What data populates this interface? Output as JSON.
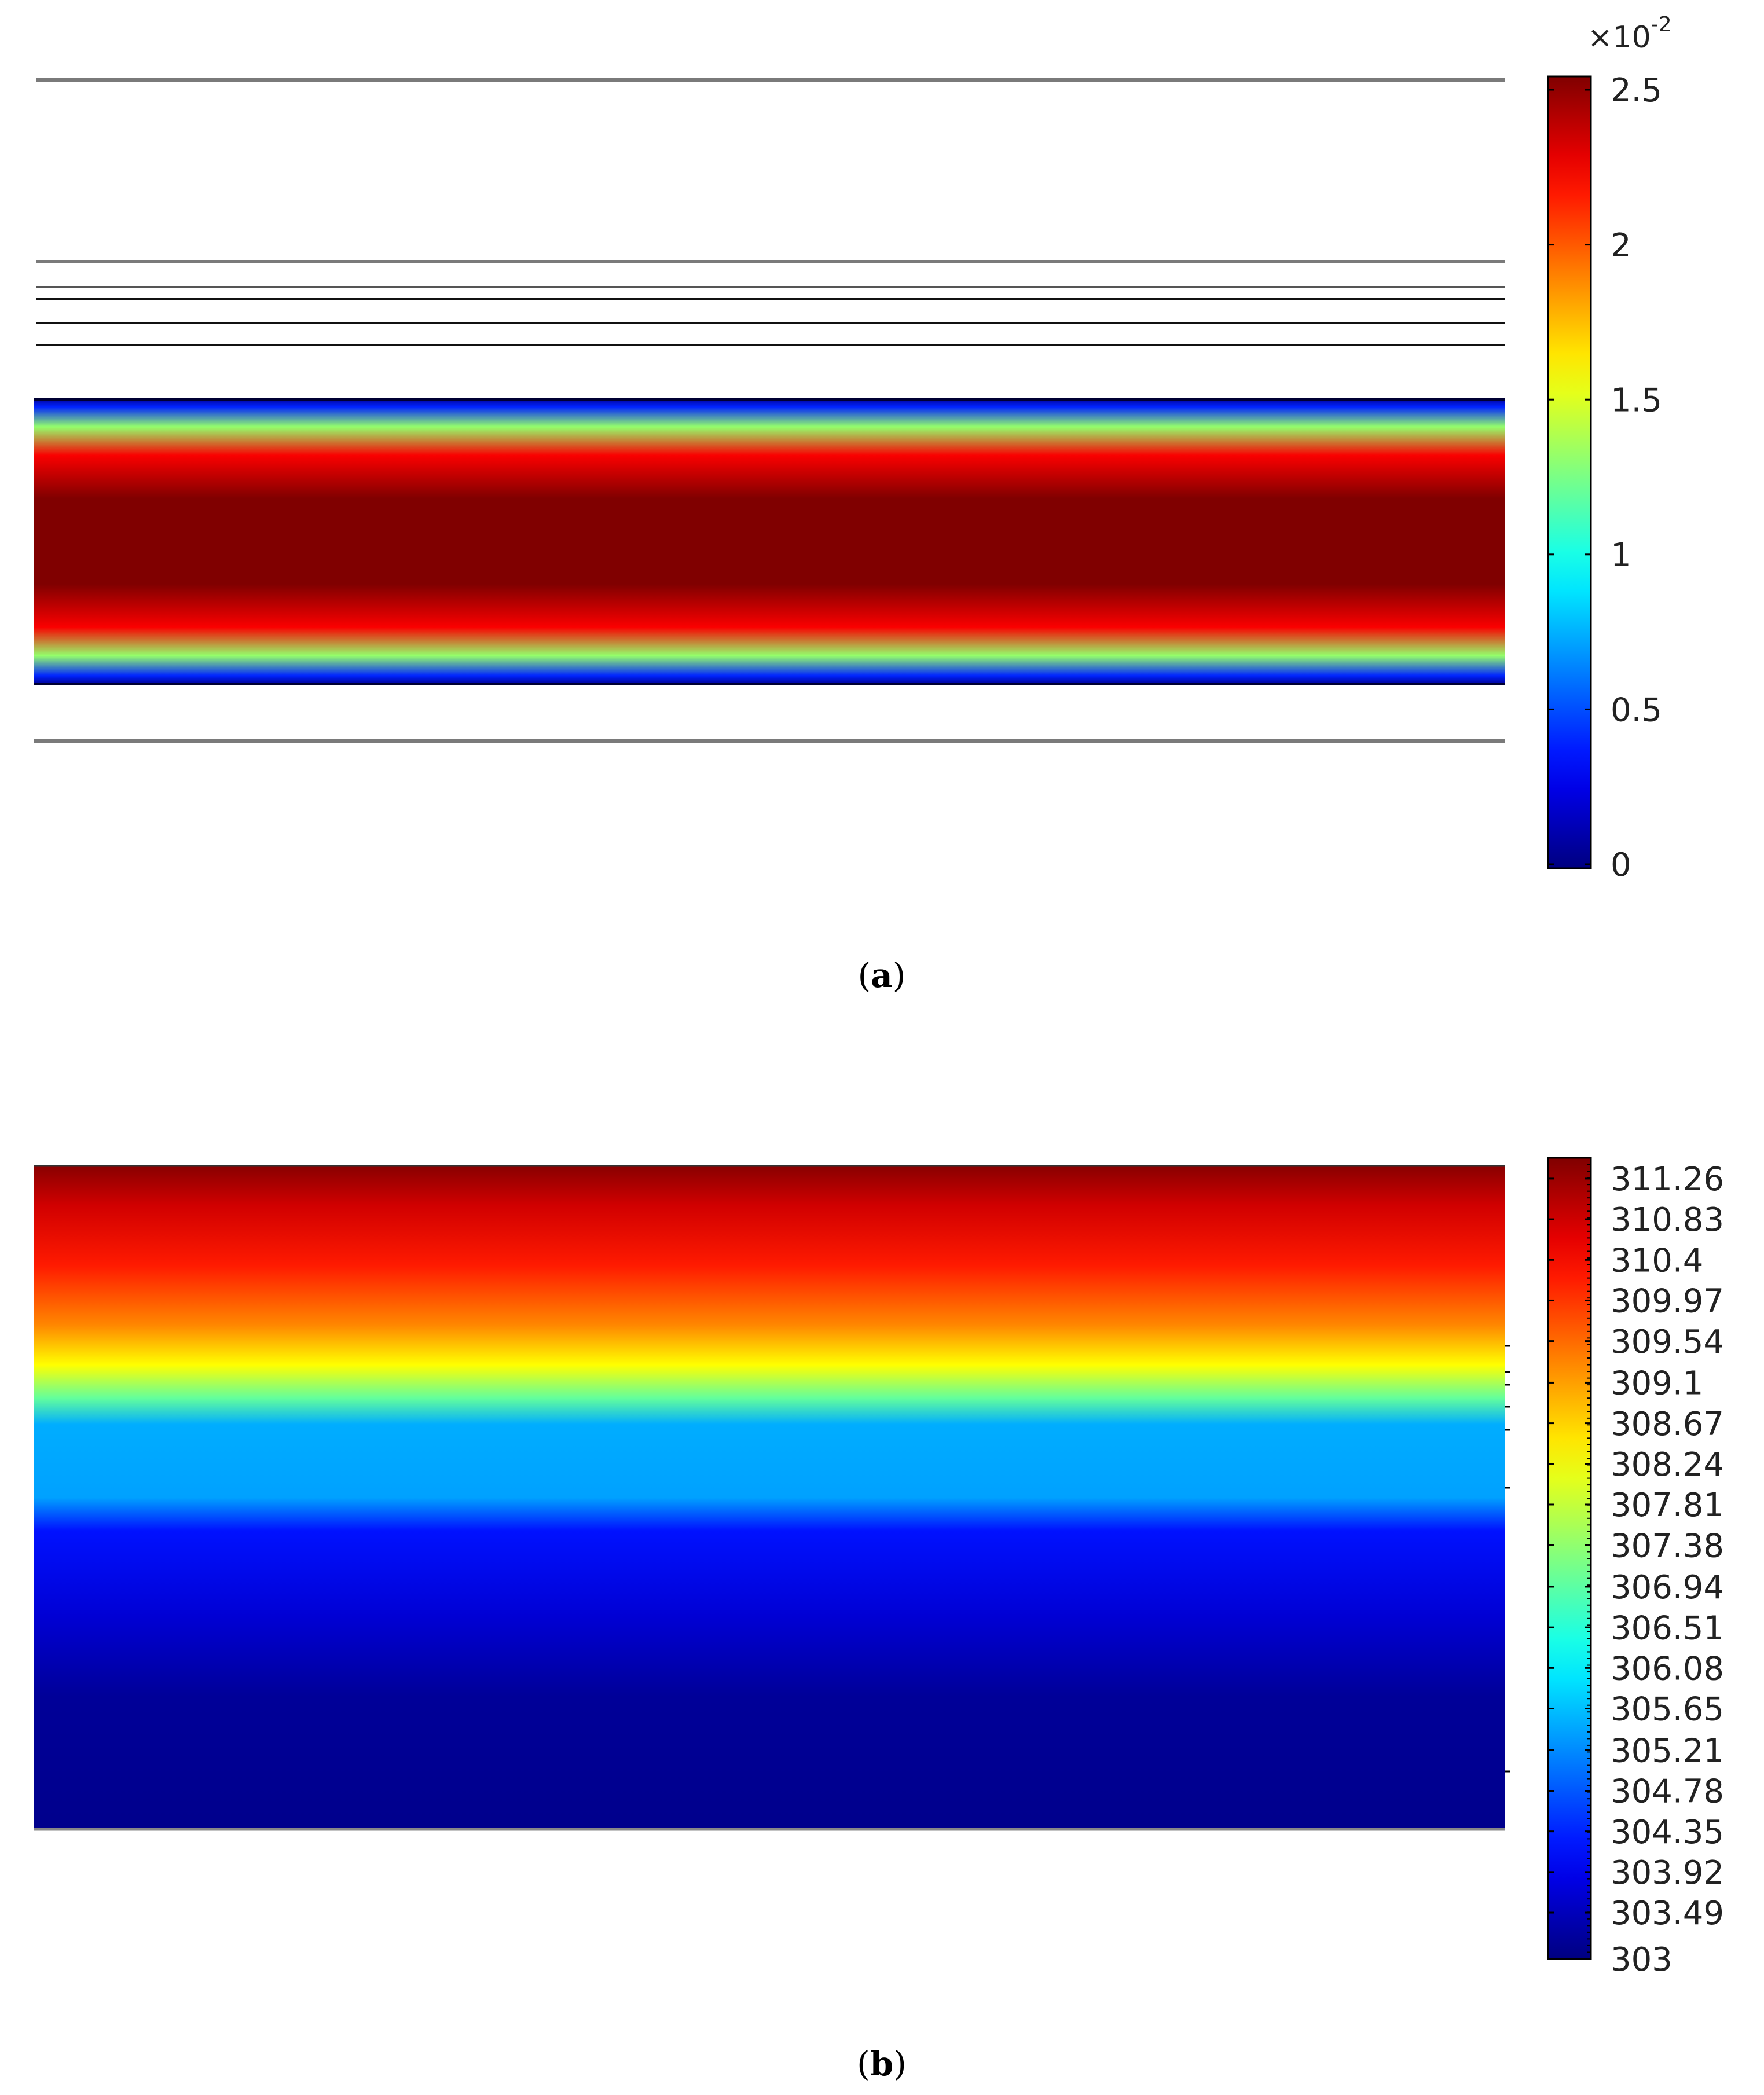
{
  "chart_data": [
    {
      "id": "a",
      "type": "heatmap",
      "caption_label": "a",
      "colormap": "jet",
      "colorbar": {
        "multiplier": "×10",
        "multiplier_exponent": "-2",
        "range": [
          0,
          2.5
        ],
        "ticks": [
          {
            "value": 2.5,
            "label": "2.5"
          },
          {
            "value": 2.0,
            "label": "2"
          },
          {
            "value": 1.5,
            "label": "1.5"
          },
          {
            "value": 1.0,
            "label": "1"
          },
          {
            "value": 0.5,
            "label": "0.5"
          },
          {
            "value": 0.0,
            "label": "0"
          }
        ]
      },
      "field_profile": {
        "description": "uniform along x; value varies across the channel height",
        "channel_fraction": [
          0,
          0.03,
          0.1,
          0.2,
          0.35,
          0.5,
          0.65,
          0.8,
          0.9,
          0.97,
          1
        ],
        "values": [
          0.05,
          0.4,
          1.3,
          2.2,
          2.5,
          2.5,
          2.5,
          2.2,
          1.3,
          0.4,
          0.05
        ]
      }
    },
    {
      "id": "b",
      "type": "heatmap",
      "caption_label": "b",
      "colormap": "jet",
      "colorbar": {
        "range": [
          303,
          311.48
        ],
        "ticks": [
          {
            "value": 311.26,
            "label": "311.26"
          },
          {
            "value": 310.83,
            "label": "310.83"
          },
          {
            "value": 310.4,
            "label": "310.4"
          },
          {
            "value": 309.97,
            "label": "309.97"
          },
          {
            "value": 309.54,
            "label": "309.54"
          },
          {
            "value": 309.1,
            "label": "309.1"
          },
          {
            "value": 308.67,
            "label": "308.67"
          },
          {
            "value": 308.24,
            "label": "308.24"
          },
          {
            "value": 307.81,
            "label": "307.81"
          },
          {
            "value": 307.38,
            "label": "307.38"
          },
          {
            "value": 306.94,
            "label": "306.94"
          },
          {
            "value": 306.51,
            "label": "306.51"
          },
          {
            "value": 306.08,
            "label": "306.08"
          },
          {
            "value": 305.65,
            "label": "305.65"
          },
          {
            "value": 305.21,
            "label": "305.21"
          },
          {
            "value": 304.78,
            "label": "304.78"
          },
          {
            "value": 304.35,
            "label": "304.35"
          },
          {
            "value": 303.92,
            "label": "303.92"
          },
          {
            "value": 303.49,
            "label": "303.49"
          },
          {
            "value": 303.0,
            "label": "303"
          }
        ]
      },
      "field_profile": {
        "description": "uniform along x; value decreases from top to bottom",
        "depth_fraction": [
          0,
          0.06,
          0.15,
          0.24,
          0.3,
          0.35,
          0.39,
          0.5,
          0.55,
          0.68,
          0.8,
          1
        ],
        "values": [
          311.4,
          310.8,
          310.2,
          309.3,
          308.3,
          307.0,
          305.5,
          305.4,
          304.2,
          303.7,
          303.2,
          303.1
        ]
      }
    }
  ]
}
